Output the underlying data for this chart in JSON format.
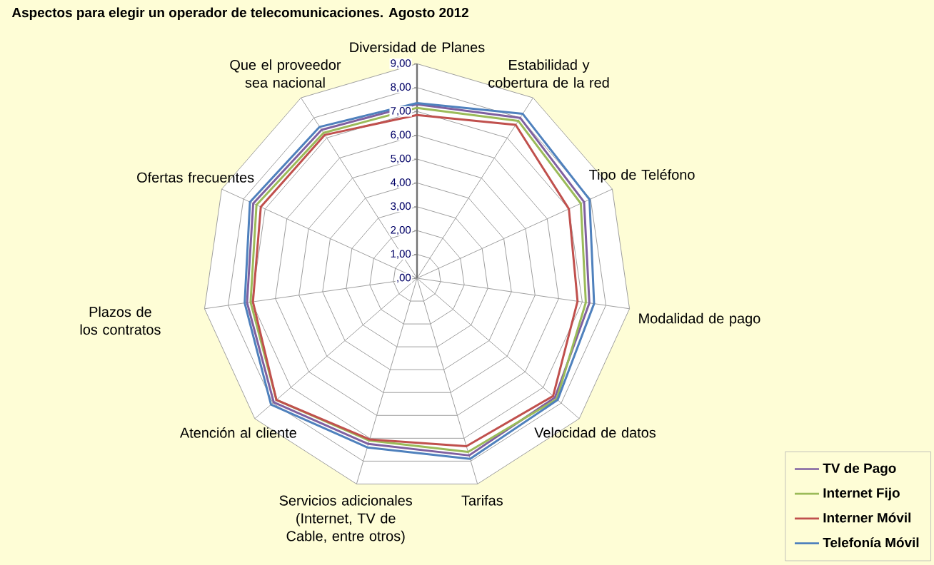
{
  "chart_data": {
    "type": "radar",
    "title": "Aspectos para elegir un operador de telecomunicaciones. Agosto 2012",
    "categories": [
      "Diversidad de Planes",
      "Estabilidad y cobertura de la red",
      "Tipo de Teléfono",
      "Modalidad de pago",
      "Velocidad de datos",
      "Tarifas",
      "Servicios adicionales (Internet, TV de Cable, entre otros)",
      "Atención al cliente",
      "Plazos de los contratos",
      "Ofertas frecuentes",
      "Que el proveedor sea nacional"
    ],
    "series": [
      {
        "name": "TV de Pago",
        "color": "#7f60a0",
        "values": [
          7.3,
          8.0,
          7.7,
          7.3,
          7.65,
          7.75,
          7.25,
          7.95,
          7.2,
          7.55,
          7.4
        ]
      },
      {
        "name": "Internet Fijo",
        "color": "#9bbb59",
        "values": [
          7.15,
          7.85,
          7.55,
          7.15,
          7.75,
          7.6,
          7.1,
          7.8,
          7.05,
          7.4,
          7.25
        ]
      },
      {
        "name": "Interner Móvil",
        "color": "#c0504d",
        "values": [
          6.85,
          7.65,
          7.0,
          6.8,
          7.55,
          7.35,
          7.05,
          7.8,
          6.95,
          7.2,
          7.15
        ]
      },
      {
        "name": "Telefonía Móvil",
        "color": "#4f81bd",
        "values": [
          7.35,
          8.2,
          7.95,
          7.5,
          7.8,
          7.9,
          7.4,
          8.1,
          7.3,
          7.7,
          7.55
        ]
      }
    ],
    "ylim": [
      0,
      9
    ],
    "yticks": [
      {
        "value": 0,
        "label": ",00"
      },
      {
        "value": 1,
        "label": "1,00"
      },
      {
        "value": 2,
        "label": "2,00"
      },
      {
        "value": 3,
        "label": "3,00"
      },
      {
        "value": 4,
        "label": "4,00"
      },
      {
        "value": 5,
        "label": "5,00"
      },
      {
        "value": 6,
        "label": "6,00"
      },
      {
        "value": 7,
        "label": "7,00"
      },
      {
        "value": 8,
        "label": "8,00"
      },
      {
        "value": 9,
        "label": "9,00"
      }
    ],
    "grid": true,
    "legend": "bottom right"
  }
}
